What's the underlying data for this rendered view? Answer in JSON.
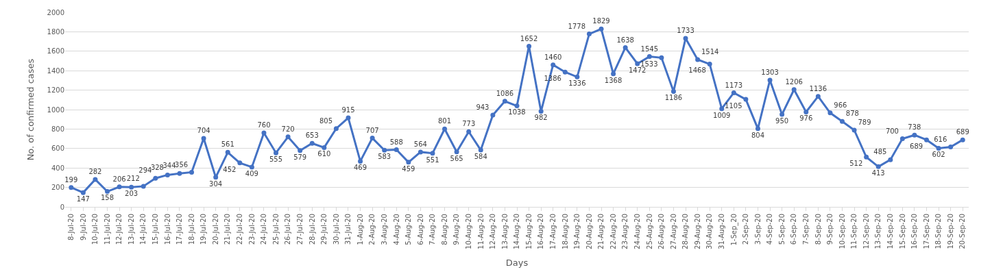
{
  "chart_data": {
    "type": "line",
    "xlabel": "Days",
    "ylabel": "No. of confirmed cases",
    "categories": [
      "8-Jul-20",
      "9-Jul-20",
      "10-Jul-20",
      "11-Jul-20",
      "12-Jul-20",
      "13-Jul-20",
      "14-Jul-20",
      "15-Jul-20",
      "16-Jul-20",
      "17-Jul-20",
      "18-Jul-20",
      "19-Jul-20",
      "20-Jul-20",
      "21-Jul-20",
      "22-Jul-20",
      "23-Jul-20",
      "24-Jul-20",
      "25-Jul-20",
      "26-Jul-20",
      "27-Jul-20",
      "28-Jul-20",
      "29-Jul-20",
      "30-Jul-20",
      "31-Jul-20",
      "1-Aug-20",
      "2-Aug-20",
      "3-Aug-20",
      "4-Aug-20",
      "5-Aug-20",
      "6-Aug-20",
      "7-Aug-20",
      "8-Aug-20",
      "9-Aug-20",
      "10-Aug-20",
      "11-Aug-20",
      "12-Aug-20",
      "13-Aug-20",
      "14-Aug-20",
      "15-Aug-20",
      "16-Aug-20",
      "17-Aug-20",
      "18-Aug-20",
      "19-Aug-20",
      "20-Aug-20",
      "21-Aug-20",
      "22-Aug-20",
      "23-Aug-20",
      "24-Aug-20",
      "25-Aug-20",
      "26-Aug-20",
      "27-Aug-20",
      "28-Aug-20",
      "29-Aug-20",
      "30-Aug-20",
      "31-Aug-20",
      "1-Sep_20",
      "2-Sep-20",
      "3-Sep-20",
      "4-Sep-20",
      "5-Sep-20",
      "6-Sep-20",
      "7-Sep-20",
      "8-Sep-20",
      "9-Sep-20",
      "10-Sep-20",
      "11-Sep-20",
      "12-Sep-20",
      "13-Sep-20",
      "14-Sep-20",
      "15-Sep-20",
      "16-Sep-20",
      "17-Sep-20",
      "18-Sep-20",
      "19-Sep-20",
      "20-Sep-20"
    ],
    "values": [
      199,
      147,
      282,
      158,
      206,
      203,
      212,
      294,
      328,
      344,
      356,
      704,
      304,
      561,
      452,
      409,
      760,
      555,
      720,
      579,
      653,
      610,
      805,
      915,
      469,
      707,
      583,
      588,
      459,
      564,
      551,
      801,
      565,
      773,
      584,
      943,
      1086,
      1038,
      1652,
      982,
      1460,
      1386,
      1336,
      1778,
      1829,
      1368,
      1638,
      1472,
      1545,
      1533,
      1186,
      1733,
      1514,
      1468,
      1009,
      1173,
      1105,
      804,
      1303,
      950,
      1206,
      976,
      1136,
      966,
      878,
      789,
      512,
      413,
      485,
      700,
      738,
      689,
      602,
      616,
      689
    ],
    "color": "#4472c4",
    "marker": "circle",
    "line_style": "solid",
    "data_labels": true,
    "ylim": [
      0,
      2000
    ],
    "yticks": [
      0,
      200,
      400,
      600,
      800,
      1000,
      1200,
      1400,
      1600,
      1800,
      2000
    ],
    "grid": "y"
  }
}
